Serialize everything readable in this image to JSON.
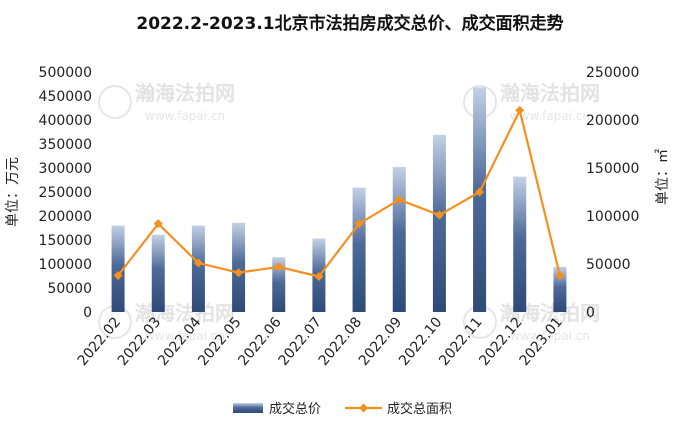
{
  "chart_data": {
    "type": "bar",
    "title": "2022.2-2023.1北京市法拍房成交总价、成交面积走势",
    "categories": [
      "2022.02",
      "2022.03",
      "2022.04",
      "2022.05",
      "2022.06",
      "2022.07",
      "2022.08",
      "2022.09",
      "2022.10",
      "2022.11",
      "2022.12",
      "2023.01"
    ],
    "series": [
      {
        "name": "成交总价",
        "type": "bar",
        "axis": "left",
        "color": "#44608c",
        "values": [
          180000,
          161000,
          180000,
          186000,
          114000,
          153000,
          259000,
          302000,
          369000,
          468000,
          282000,
          94000
        ]
      },
      {
        "name": "成交总面积",
        "type": "line",
        "axis": "right",
        "color": "#f5901e",
        "values": [
          38000,
          92000,
          51000,
          41000,
          47000,
          37000,
          92000,
          117000,
          101000,
          125000,
          210000,
          38000
        ]
      }
    ],
    "ylabel_left": "单位：万元",
    "ylabel_right": "单位：㎡",
    "ylim_left": [
      0,
      500000
    ],
    "ylim_right": [
      0,
      250000
    ],
    "yticks_left": [
      "0",
      "50000",
      "100000",
      "150000",
      "200000",
      "250000",
      "300000",
      "350000",
      "400000",
      "450000",
      "500000"
    ],
    "yticks_right": [
      "0",
      "50000",
      "100000",
      "150000",
      "200000",
      "250000"
    ],
    "grid": false,
    "legend_position": "bottom"
  },
  "watermark": {
    "text": "瀚海法拍网",
    "url": "www.fapai.cn"
  }
}
